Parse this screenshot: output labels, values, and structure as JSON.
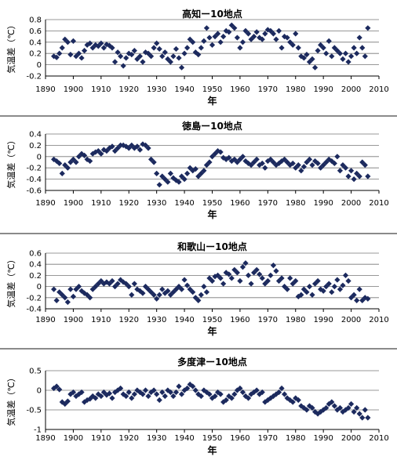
{
  "colors": {
    "marker": "#1c2a5e",
    "axis": "#000000",
    "grid": "#777777",
    "separator": "#8a8a8a"
  },
  "chart_data": [
    {
      "type": "scatter",
      "title": "高知ー10地点",
      "xlabel": "年",
      "ylabel": "気温差（℃）",
      "xlim": [
        1890,
        2010
      ],
      "ylim": [
        -0.2,
        0.8
      ],
      "xticks": [
        "1890",
        "1900",
        "1910",
        "1920",
        "1930",
        "1940",
        "1950",
        "1960",
        "1970",
        "1980",
        "1990",
        "2000",
        "2010"
      ],
      "yticks": [
        "-0.2",
        "0",
        "0.2",
        "0.4",
        "0.6",
        "0.8"
      ],
      "grid": "horizontal",
      "series": [
        {
          "x": [
            1893,
            1894,
            1895,
            1896,
            1897,
            1898,
            1899,
            1900,
            1901,
            1902,
            1903,
            1904,
            1905,
            1906,
            1907,
            1908,
            1909,
            1910,
            1911,
            1912,
            1913,
            1914,
            1915,
            1916,
            1917,
            1918,
            1919,
            1920,
            1921,
            1922,
            1923,
            1924,
            1925,
            1926,
            1927,
            1928,
            1929,
            1930,
            1931,
            1932,
            1933,
            1934,
            1935,
            1936,
            1937,
            1938,
            1939,
            1940,
            1941,
            1942,
            1943,
            1944,
            1945,
            1946,
            1947,
            1948,
            1949,
            1950,
            1951,
            1952,
            1953,
            1954,
            1955,
            1956,
            1957,
            1958,
            1959,
            1960,
            1961,
            1962,
            1963,
            1964,
            1965,
            1966,
            1967,
            1968,
            1969,
            1970,
            1971,
            1972,
            1973,
            1974,
            1975,
            1976,
            1977,
            1978,
            1979,
            1980,
            1981,
            1982,
            1983,
            1984,
            1985,
            1986,
            1987,
            1988,
            1989,
            1990,
            1991,
            1992,
            1993,
            1994,
            1995,
            1996,
            1997,
            1998,
            1999,
            2000,
            2001,
            2002,
            2003,
            2004,
            2005,
            2006
          ],
          "y": [
            0.15,
            0.13,
            0.2,
            0.3,
            0.45,
            0.4,
            0.18,
            0.42,
            0.15,
            0.2,
            0.12,
            0.25,
            0.35,
            0.38,
            0.3,
            0.35,
            0.33,
            0.38,
            0.3,
            0.36,
            0.34,
            0.3,
            0.05,
            0.22,
            0.15,
            -0.02,
            0.12,
            0.2,
            0.18,
            0.25,
            0.1,
            0.15,
            0.05,
            0.22,
            0.2,
            0.15,
            0.3,
            0.38,
            0.28,
            0.15,
            0.22,
            0.1,
            0.05,
            0.15,
            0.28,
            0.12,
            -0.05,
            0.2,
            0.3,
            0.45,
            0.4,
            0.22,
            0.18,
            0.3,
            0.42,
            0.65,
            0.48,
            0.35,
            0.5,
            0.55,
            0.4,
            0.5,
            0.6,
            0.58,
            0.7,
            0.65,
            0.48,
            0.3,
            0.4,
            0.6,
            0.55,
            0.45,
            0.5,
            0.58,
            0.48,
            0.45,
            0.55,
            0.62,
            0.6,
            0.55,
            0.45,
            0.6,
            0.3,
            0.5,
            0.48,
            0.4,
            0.35,
            0.55,
            0.3,
            0.15,
            0.12,
            0.18,
            0.05,
            0.1,
            -0.05,
            0.25,
            0.35,
            0.3,
            0.2,
            0.42,
            0.15,
            0.3,
            0.25,
            0.2,
            0.1,
            0.2,
            0.05,
            0.15,
            0.3,
            0.2,
            0.48,
            0.3,
            0.15,
            0.65
          ]
        }
      ]
    },
    {
      "type": "scatter",
      "title": "徳島ー10地点",
      "xlabel": "年",
      "ylabel": "気温差（℃）",
      "xlim": [
        1890,
        2010
      ],
      "ylim": [
        -0.6,
        0.4
      ],
      "xticks": [
        "1890",
        "1900",
        "1910",
        "1920",
        "1930",
        "1940",
        "1950",
        "1960",
        "1970",
        "1980",
        "1990",
        "2000",
        "2010"
      ],
      "yticks": [
        "-0.6",
        "-0.4",
        "-0.2",
        "0",
        "0.2",
        "0.4"
      ],
      "grid": "horizontal",
      "series": [
        {
          "x": [
            1893,
            1894,
            1895,
            1896,
            1897,
            1898,
            1899,
            1900,
            1901,
            1902,
            1903,
            1904,
            1905,
            1906,
            1907,
            1908,
            1909,
            1910,
            1911,
            1912,
            1913,
            1914,
            1915,
            1916,
            1917,
            1918,
            1919,
            1920,
            1921,
            1922,
            1923,
            1924,
            1925,
            1926,
            1927,
            1928,
            1929,
            1930,
            1931,
            1932,
            1933,
            1934,
            1935,
            1936,
            1937,
            1938,
            1939,
            1940,
            1941,
            1942,
            1943,
            1944,
            1945,
            1946,
            1947,
            1948,
            1949,
            1950,
            1951,
            1952,
            1953,
            1954,
            1955,
            1956,
            1957,
            1958,
            1959,
            1960,
            1961,
            1962,
            1963,
            1964,
            1965,
            1966,
            1967,
            1968,
            1969,
            1970,
            1971,
            1972,
            1973,
            1974,
            1975,
            1976,
            1977,
            1978,
            1979,
            1980,
            1981,
            1982,
            1983,
            1984,
            1985,
            1986,
            1987,
            1988,
            1989,
            1990,
            1991,
            1992,
            1993,
            1994,
            1995,
            1996,
            1997,
            1998,
            1999,
            2000,
            2001,
            2002,
            2003,
            2004,
            2005,
            2006
          ],
          "y": [
            -0.05,
            -0.08,
            -0.12,
            -0.3,
            -0.15,
            -0.2,
            -0.1,
            -0.05,
            -0.1,
            0.0,
            0.05,
            0.02,
            -0.05,
            -0.08,
            0.05,
            0.08,
            0.1,
            0.05,
            0.12,
            0.1,
            0.15,
            0.18,
            0.1,
            0.15,
            0.2,
            0.2,
            0.18,
            0.15,
            0.2,
            0.15,
            0.18,
            0.12,
            0.22,
            0.2,
            0.15,
            -0.05,
            -0.1,
            -0.3,
            -0.5,
            -0.35,
            -0.4,
            -0.45,
            -0.3,
            -0.38,
            -0.42,
            -0.45,
            -0.35,
            -0.4,
            -0.3,
            -0.2,
            -0.25,
            -0.22,
            -0.35,
            -0.3,
            -0.25,
            -0.15,
            -0.1,
            0.0,
            0.05,
            0.1,
            0.08,
            -0.02,
            -0.05,
            -0.02,
            -0.08,
            -0.05,
            -0.1,
            -0.05,
            0.0,
            -0.08,
            -0.12,
            -0.15,
            -0.1,
            -0.05,
            -0.15,
            -0.12,
            -0.2,
            -0.08,
            -0.05,
            -0.1,
            -0.15,
            -0.12,
            -0.08,
            -0.05,
            -0.1,
            -0.15,
            -0.12,
            -0.2,
            -0.15,
            -0.25,
            -0.18,
            -0.1,
            -0.05,
            -0.15,
            -0.08,
            -0.12,
            -0.2,
            -0.15,
            -0.1,
            -0.05,
            -0.08,
            -0.12,
            0.0,
            -0.25,
            -0.15,
            -0.2,
            -0.35,
            -0.25,
            -0.4,
            -0.3,
            -0.35,
            -0.1,
            -0.15,
            -0.35
          ]
        }
      ]
    },
    {
      "type": "scatter",
      "title": "和歌山ー10地点",
      "xlabel": "年",
      "ylabel": "気温差（℃）",
      "xlim": [
        1890,
        2010
      ],
      "ylim": [
        -0.4,
        0.6
      ],
      "xticks": [
        "1890",
        "1900",
        "1910",
        "1920",
        "1930",
        "1940",
        "1950",
        "1960",
        "1970",
        "1980",
        "1990",
        "2000",
        "2010"
      ],
      "yticks": [
        "-0.4",
        "-0.2",
        "0",
        "0.2",
        "0.4",
        "0.6"
      ],
      "grid": "horizontal",
      "series": [
        {
          "x": [
            1893,
            1894,
            1895,
            1896,
            1897,
            1898,
            1899,
            1900,
            1901,
            1902,
            1903,
            1904,
            1905,
            1906,
            1907,
            1908,
            1909,
            1910,
            1911,
            1912,
            1913,
            1914,
            1915,
            1916,
            1917,
            1918,
            1919,
            1920,
            1921,
            1922,
            1923,
            1924,
            1925,
            1926,
            1927,
            1928,
            1929,
            1930,
            1931,
            1932,
            1933,
            1934,
            1935,
            1936,
            1937,
            1938,
            1939,
            1940,
            1941,
            1942,
            1943,
            1944,
            1945,
            1946,
            1947,
            1948,
            1949,
            1950,
            1951,
            1952,
            1953,
            1954,
            1955,
            1956,
            1957,
            1958,
            1959,
            1960,
            1961,
            1962,
            1963,
            1964,
            1965,
            1966,
            1967,
            1968,
            1969,
            1970,
            1971,
            1972,
            1973,
            1974,
            1975,
            1976,
            1977,
            1978,
            1979,
            1980,
            1981,
            1982,
            1983,
            1984,
            1985,
            1986,
            1987,
            1988,
            1989,
            1990,
            1991,
            1992,
            1993,
            1994,
            1995,
            1996,
            1997,
            1998,
            1999,
            2000,
            2001,
            2002,
            2003,
            2004,
            2005,
            2006
          ],
          "y": [
            -0.05,
            -0.25,
            -0.1,
            -0.15,
            -0.2,
            -0.28,
            -0.05,
            -0.18,
            -0.05,
            0.0,
            -0.08,
            -0.12,
            -0.15,
            -0.2,
            -0.05,
            0.0,
            0.05,
            0.1,
            0.05,
            0.08,
            0.05,
            0.1,
            0.0,
            0.05,
            0.12,
            0.08,
            0.05,
            0.0,
            -0.15,
            0.05,
            -0.05,
            -0.08,
            -0.12,
            0.0,
            -0.05,
            -0.1,
            -0.15,
            -0.22,
            -0.15,
            -0.05,
            -0.12,
            -0.08,
            -0.15,
            -0.1,
            -0.05,
            0.0,
            -0.05,
            0.12,
            0.02,
            -0.05,
            -0.1,
            -0.2,
            -0.25,
            -0.15,
            0.0,
            -0.1,
            0.15,
            0.1,
            0.18,
            0.2,
            0.15,
            0.05,
            0.25,
            0.22,
            0.15,
            0.3,
            0.25,
            0.1,
            0.35,
            0.42,
            0.2,
            0.05,
            0.25,
            0.3,
            0.22,
            0.15,
            0.05,
            0.1,
            0.2,
            0.38,
            0.28,
            0.1,
            0.15,
            0.0,
            -0.05,
            0.15,
            0.05,
            0.1,
            -0.18,
            -0.15,
            -0.05,
            -0.1,
            0.0,
            -0.15,
            0.05,
            0.1,
            -0.05,
            -0.08,
            0.0,
            0.05,
            -0.1,
            0.0,
            0.12,
            -0.05,
            0.02,
            0.2,
            0.1,
            -0.2,
            -0.15,
            -0.25,
            -0.05,
            -0.25,
            -0.2,
            -0.22
          ]
        }
      ]
    },
    {
      "type": "scatter",
      "title": "多度津ー10地点",
      "xlabel": "年",
      "ylabel": "気温差（℃）",
      "xlim": [
        1890,
        2010
      ],
      "ylim": [
        -1,
        0.5
      ],
      "xticks": [
        "1890",
        "1900",
        "1910",
        "1920",
        "1930",
        "1940",
        "1950",
        "1960",
        "1970",
        "1980",
        "1990",
        "2000",
        "2010"
      ],
      "yticks": [
        "-1",
        "-0.5",
        "0",
        "0.5"
      ],
      "grid": "horizontal",
      "series": [
        {
          "x": [
            1893,
            1894,
            1895,
            1896,
            1897,
            1898,
            1899,
            1900,
            1901,
            1902,
            1903,
            1904,
            1905,
            1906,
            1907,
            1908,
            1909,
            1910,
            1911,
            1912,
            1913,
            1914,
            1915,
            1916,
            1917,
            1918,
            1919,
            1920,
            1921,
            1922,
            1923,
            1924,
            1925,
            1926,
            1927,
            1928,
            1929,
            1930,
            1931,
            1932,
            1933,
            1934,
            1935,
            1936,
            1937,
            1938,
            1939,
            1940,
            1941,
            1942,
            1943,
            1944,
            1945,
            1946,
            1947,
            1948,
            1949,
            1950,
            1951,
            1952,
            1953,
            1954,
            1955,
            1956,
            1957,
            1958,
            1959,
            1960,
            1961,
            1962,
            1963,
            1964,
            1965,
            1966,
            1967,
            1968,
            1969,
            1970,
            1971,
            1972,
            1973,
            1974,
            1975,
            1976,
            1977,
            1978,
            1979,
            1980,
            1981,
            1982,
            1983,
            1984,
            1985,
            1986,
            1987,
            1988,
            1989,
            1990,
            1991,
            1992,
            1993,
            1994,
            1995,
            1996,
            1997,
            1998,
            1999,
            2000,
            2001,
            2002,
            2003,
            2004,
            2005,
            2006
          ],
          "y": [
            0.05,
            0.1,
            0.02,
            -0.3,
            -0.35,
            -0.28,
            -0.1,
            -0.05,
            -0.15,
            -0.1,
            -0.05,
            -0.3,
            -0.25,
            -0.22,
            -0.15,
            -0.2,
            -0.1,
            -0.15,
            -0.05,
            -0.12,
            -0.08,
            -0.2,
            -0.05,
            0.0,
            0.05,
            -0.1,
            -0.15,
            -0.05,
            -0.2,
            -0.1,
            0.0,
            -0.05,
            -0.1,
            0.0,
            -0.15,
            -0.05,
            0.0,
            -0.1,
            -0.25,
            -0.05,
            -0.15,
            0.0,
            -0.05,
            -0.15,
            -0.05,
            0.1,
            -0.1,
            0.0,
            0.05,
            0.15,
            0.1,
            0.0,
            -0.1,
            -0.15,
            0.0,
            -0.05,
            -0.1,
            -0.2,
            -0.15,
            -0.05,
            -0.1,
            -0.3,
            -0.25,
            -0.15,
            -0.2,
            -0.1,
            0.0,
            0.05,
            -0.05,
            -0.15,
            -0.2,
            -0.1,
            -0.05,
            0.0,
            -0.1,
            -0.05,
            -0.3,
            -0.25,
            -0.2,
            -0.15,
            -0.1,
            -0.05,
            0.05,
            -0.1,
            -0.2,
            -0.25,
            -0.3,
            -0.2,
            -0.25,
            -0.4,
            -0.45,
            -0.5,
            -0.4,
            -0.45,
            -0.55,
            -0.6,
            -0.55,
            -0.5,
            -0.45,
            -0.35,
            -0.3,
            -0.4,
            -0.5,
            -0.45,
            -0.55,
            -0.5,
            -0.45,
            -0.35,
            -0.55,
            -0.45,
            -0.6,
            -0.7,
            -0.5,
            -0.7
          ]
        }
      ]
    }
  ]
}
